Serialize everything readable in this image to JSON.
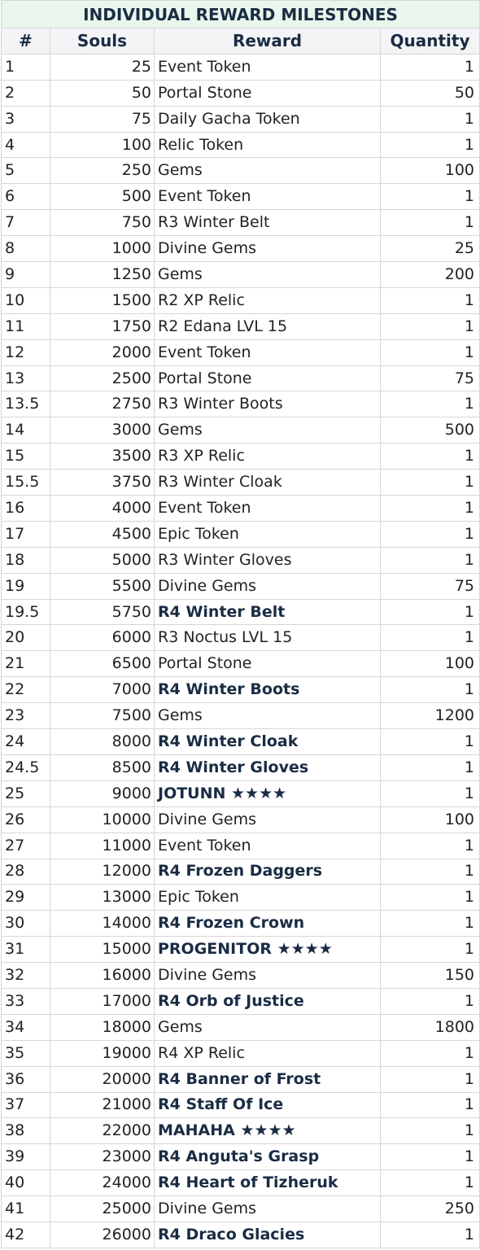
{
  "title": "INDIVIDUAL REWARD MILESTONES",
  "headers": [
    "#",
    "Souls",
    "Reward",
    "Quantity"
  ],
  "rows": [
    {
      "n": "1",
      "souls": "25",
      "reward": "Event Token",
      "qty": "1",
      "bold": false
    },
    {
      "n": "2",
      "souls": "50",
      "reward": "Portal Stone",
      "qty": "50",
      "bold": false
    },
    {
      "n": "3",
      "souls": "75",
      "reward": "Daily Gacha Token",
      "qty": "1",
      "bold": false
    },
    {
      "n": "4",
      "souls": "100",
      "reward": "Relic Token",
      "qty": "1",
      "bold": false
    },
    {
      "n": "5",
      "souls": "250",
      "reward": "Gems",
      "qty": "100",
      "bold": false
    },
    {
      "n": "6",
      "souls": "500",
      "reward": "Event Token",
      "qty": "1",
      "bold": false
    },
    {
      "n": "7",
      "souls": "750",
      "reward": "R3 Winter Belt",
      "qty": "1",
      "bold": false
    },
    {
      "n": "8",
      "souls": "1000",
      "reward": "Divine Gems",
      "qty": "25",
      "bold": false
    },
    {
      "n": "9",
      "souls": "1250",
      "reward": "Gems",
      "qty": "200",
      "bold": false
    },
    {
      "n": "10",
      "souls": "1500",
      "reward": "R2 XP Relic",
      "qty": "1",
      "bold": false
    },
    {
      "n": "11",
      "souls": "1750",
      "reward": "R2 Edana LVL 15",
      "qty": "1",
      "bold": false
    },
    {
      "n": "12",
      "souls": "2000",
      "reward": "Event Token",
      "qty": "1",
      "bold": false
    },
    {
      "n": "13",
      "souls": "2500",
      "reward": "Portal Stone",
      "qty": "75",
      "bold": false
    },
    {
      "n": "13.5",
      "souls": "2750",
      "reward": "R3 Winter Boots",
      "qty": "1",
      "bold": false
    },
    {
      "n": "14",
      "souls": "3000",
      "reward": "Gems",
      "qty": "500",
      "bold": false
    },
    {
      "n": "15",
      "souls": "3500",
      "reward": "R3 XP Relic",
      "qty": "1",
      "bold": false
    },
    {
      "n": "15.5",
      "souls": "3750",
      "reward": "R3 Winter Cloak",
      "qty": "1",
      "bold": false
    },
    {
      "n": "16",
      "souls": "4000",
      "reward": "Event Token",
      "qty": "1",
      "bold": false
    },
    {
      "n": "17",
      "souls": "4500",
      "reward": "Epic Token",
      "qty": "1",
      "bold": false
    },
    {
      "n": "18",
      "souls": "5000",
      "reward": "R3 Winter Gloves",
      "qty": "1",
      "bold": false
    },
    {
      "n": "19",
      "souls": "5500",
      "reward": "Divine Gems",
      "qty": "75",
      "bold": false
    },
    {
      "n": "19.5",
      "souls": "5750",
      "reward": "R4 Winter Belt",
      "qty": "1",
      "bold": true
    },
    {
      "n": "20",
      "souls": "6000",
      "reward": "R3 Noctus LVL 15",
      "qty": "1",
      "bold": false
    },
    {
      "n": "21",
      "souls": "6500",
      "reward": "Portal Stone",
      "qty": "100",
      "bold": false
    },
    {
      "n": "22",
      "souls": "7000",
      "reward": "R4 Winter Boots",
      "qty": "1",
      "bold": true
    },
    {
      "n": "23",
      "souls": "7500",
      "reward": "Gems",
      "qty": "1200",
      "bold": false
    },
    {
      "n": "24",
      "souls": "8000",
      "reward": "R4 Winter Cloak",
      "qty": "1",
      "bold": true
    },
    {
      "n": "24.5",
      "souls": "8500",
      "reward": "R4 Winter Gloves",
      "qty": "1",
      "bold": true
    },
    {
      "n": "25",
      "souls": "9000",
      "reward": "JOTUNN ★★★★",
      "qty": "1",
      "bold": true
    },
    {
      "n": "26",
      "souls": "10000",
      "reward": "Divine Gems",
      "qty": "100",
      "bold": false
    },
    {
      "n": "27",
      "souls": "11000",
      "reward": "Event Token",
      "qty": "1",
      "bold": false
    },
    {
      "n": "28",
      "souls": "12000",
      "reward": "R4 Frozen Daggers",
      "qty": "1",
      "bold": true
    },
    {
      "n": "29",
      "souls": "13000",
      "reward": "Epic Token",
      "qty": "1",
      "bold": false
    },
    {
      "n": "30",
      "souls": "14000",
      "reward": "R4 Frozen Crown",
      "qty": "1",
      "bold": true
    },
    {
      "n": "31",
      "souls": "15000",
      "reward": "PROGENITOR ★★★★",
      "qty": "1",
      "bold": true
    },
    {
      "n": "32",
      "souls": "16000",
      "reward": "Divine Gems",
      "qty": "150",
      "bold": false
    },
    {
      "n": "33",
      "souls": "17000",
      "reward": "R4 Orb of Justice",
      "qty": "1",
      "bold": true
    },
    {
      "n": "34",
      "souls": "18000",
      "reward": "Gems",
      "qty": "1800",
      "bold": false
    },
    {
      "n": "35",
      "souls": "19000",
      "reward": "R4 XP Relic",
      "qty": "1",
      "bold": false
    },
    {
      "n": "36",
      "souls": "20000",
      "reward": "R4 Banner of Frost",
      "qty": "1",
      "bold": true
    },
    {
      "n": "37",
      "souls": "21000",
      "reward": "R4 Staff Of Ice",
      "qty": "1",
      "bold": true
    },
    {
      "n": "38",
      "souls": "22000",
      "reward": "MAHAHA ★★★★",
      "qty": "1",
      "bold": true
    },
    {
      "n": "39",
      "souls": "23000",
      "reward": "R4 Anguta's Grasp",
      "qty": "1",
      "bold": true
    },
    {
      "n": "40",
      "souls": "24000",
      "reward": "R4 Heart of Tizheruk",
      "qty": "1",
      "bold": true
    },
    {
      "n": "41",
      "souls": "25000",
      "reward": "Divine Gems",
      "qty": "250",
      "bold": false
    },
    {
      "n": "42",
      "souls": "26000",
      "reward": "R4 Draco Glacies",
      "qty": "1",
      "bold": true
    }
  ]
}
